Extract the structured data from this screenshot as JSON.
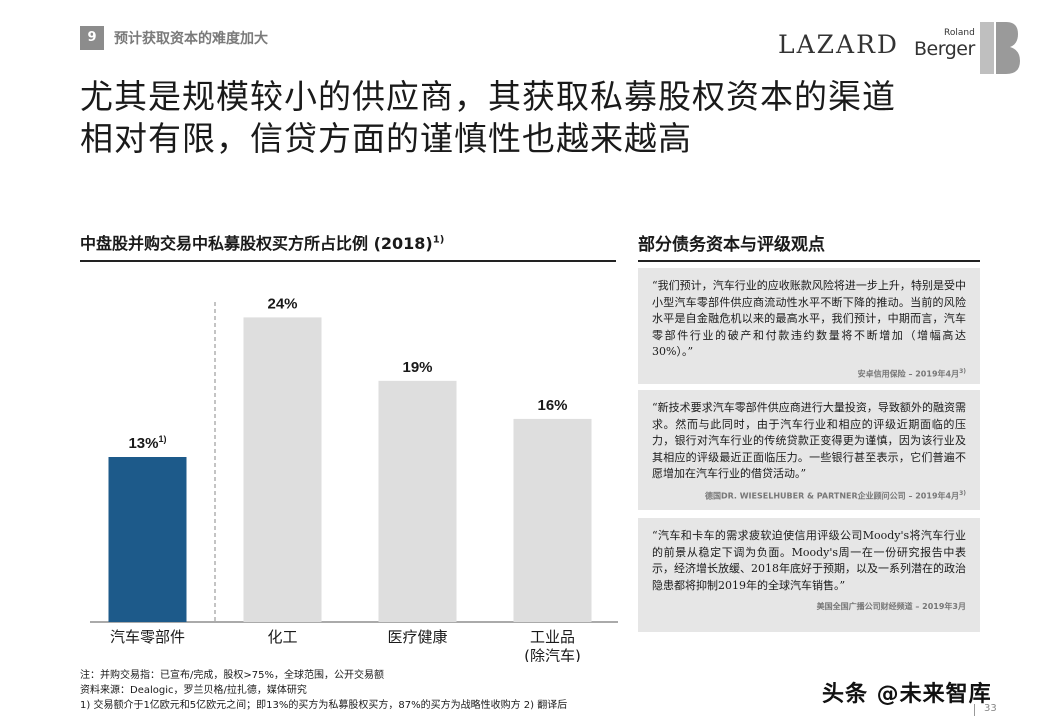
{
  "header": {
    "section_number": "9",
    "section_title": "预计获取资本的难度加大",
    "logo_lazard": "LAZARD",
    "logo_roland": "Roland",
    "logo_berger": "Berger"
  },
  "headline": {
    "line1": "尤其是规模较小的供应商，其获取私募股权资本的渠道",
    "line2": "相对有限，信贷方面的谨慎性也越来越高"
  },
  "chart_section": {
    "title": "中盘股并购交易中私募股权买方所占比例 (2018)",
    "title_sup": "1)"
  },
  "chart_data": {
    "type": "bar",
    "categories": [
      "汽车零部件",
      "化工",
      "医疗健康",
      "工业品"
    ],
    "category_sublabels": [
      "",
      "",
      "",
      "(除汽车)"
    ],
    "values": [
      13,
      24,
      19,
      16
    ],
    "value_labels": [
      "13%",
      "24%",
      "19%",
      "16%"
    ],
    "value_label_sups": [
      "1)",
      "",
      "",
      ""
    ],
    "unit": "%",
    "ylim": [
      0,
      26
    ],
    "colors": [
      "#1d5a8a",
      "#dedede",
      "#dedede",
      "#dedede"
    ],
    "highlighted_category": "汽车零部件",
    "separator_after_index": 0
  },
  "right_section": {
    "title": "部分债务资本与评级观点"
  },
  "quotes": [
    {
      "text": "“我们预计，汽车行业的应收账款风险将进一步上升，特别是受中小型汽车零部件供应商流动性水平不断下降的推动。当前的风险水平是自金融危机以来的最高水平，我们预计，中期而言，汽车零部件行业的破产和付款违约数量将不断增加（增幅高达30%）。”",
      "source": "安卓信用保险 – 2019年4月",
      "source_sup": "3)"
    },
    {
      "text": "“新技术要求汽车零部件供应商进行大量投资，导致额外的融资需求。然而与此同时，由于汽车行业和相应的评级近期面临的压力，银行对汽车行业的传统贷款正变得更为谨慎，因为该行业及其相应的评级最近正面临压力。一些银行甚至表示，它们普遍不愿增加在汽车行业的借贷活动。”",
      "source": "德国DR. WIESELHUBER & PARTNER企业顾问公司 – 2019年4月",
      "source_sup": "3)"
    },
    {
      "text": "“汽车和卡车的需求疲软迫使信用评级公司Moody's将汽车行业的前景从稳定下调为负面。Moody's周一在一份研究报告中表示，经济增长放缓、2018年底好于预期，以及一系列潜在的政治隐患都将抑制2019年的全球汽车销售。”",
      "source": "美国全国广播公司财经频道 – 2019年3月",
      "source_sup": ""
    }
  ],
  "footnotes": {
    "note": "注：并购交易指：已宣布/完成，股权>75%，全球范围，公开交易额",
    "source": "资料来源：Dealogic，罗兰贝格/拉扎德，媒体研究",
    "detail": "1) 交易额介于1亿欧元和5亿欧元之间；即13%的买方为私募股权买方，87%的买方为战略性收购方  2) 翻译后"
  },
  "watermark": "头条 @未来智库",
  "page_number": "33"
}
